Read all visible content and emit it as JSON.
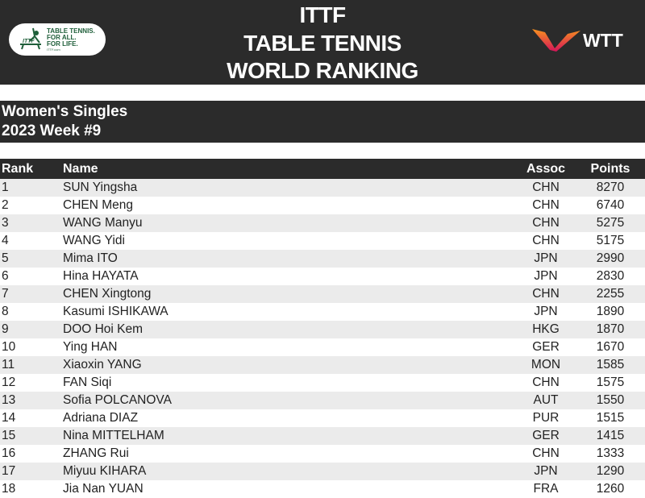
{
  "header": {
    "title_lines": [
      "ITTF",
      "TABLE TENNIS",
      "WORLD RANKING"
    ],
    "ittf_logo": {
      "lines": [
        "TABLE TENNIS.",
        "FOR ALL.",
        "FOR LIFE."
      ],
      "small": "ITTF.com"
    },
    "wtt_logo": {
      "text": "WTT"
    }
  },
  "subtitle": {
    "category": "Women's Singles",
    "week": "2023 Week #9"
  },
  "table": {
    "columns": [
      "Rank",
      "Name",
      "Assoc",
      "Points"
    ],
    "rows": [
      {
        "rank": "1",
        "name": "SUN Yingsha",
        "assoc": "CHN",
        "points": "8270"
      },
      {
        "rank": "2",
        "name": "CHEN Meng",
        "assoc": "CHN",
        "points": "6740"
      },
      {
        "rank": "3",
        "name": "WANG Manyu",
        "assoc": "CHN",
        "points": "5275"
      },
      {
        "rank": "4",
        "name": "WANG Yidi",
        "assoc": "CHN",
        "points": "5175"
      },
      {
        "rank": "5",
        "name": "Mima ITO",
        "assoc": "JPN",
        "points": "2990"
      },
      {
        "rank": "6",
        "name": "Hina HAYATA",
        "assoc": "JPN",
        "points": "2830"
      },
      {
        "rank": "7",
        "name": "CHEN Xingtong",
        "assoc": "CHN",
        "points": "2255"
      },
      {
        "rank": "8",
        "name": "Kasumi ISHIKAWA",
        "assoc": "JPN",
        "points": "1890"
      },
      {
        "rank": "9",
        "name": "DOO Hoi Kem",
        "assoc": "HKG",
        "points": "1870"
      },
      {
        "rank": "10",
        "name": "Ying HAN",
        "assoc": "GER",
        "points": "1670"
      },
      {
        "rank": "11",
        "name": "Xiaoxin YANG",
        "assoc": "MON",
        "points": "1585"
      },
      {
        "rank": "12",
        "name": "FAN Siqi",
        "assoc": "CHN",
        "points": "1575"
      },
      {
        "rank": "13",
        "name": "Sofia POLCANOVA",
        "assoc": "AUT",
        "points": "1550"
      },
      {
        "rank": "14",
        "name": "Adriana DIAZ",
        "assoc": "PUR",
        "points": "1515"
      },
      {
        "rank": "15",
        "name": "Nina MITTELHAM",
        "assoc": "GER",
        "points": "1415"
      },
      {
        "rank": "16",
        "name": "ZHANG Rui",
        "assoc": "CHN",
        "points": "1333"
      },
      {
        "rank": "17",
        "name": "Miyuu KIHARA",
        "assoc": "JPN",
        "points": "1290"
      },
      {
        "rank": "18",
        "name": "Jia Nan YUAN",
        "assoc": "FRA",
        "points": "1260"
      }
    ]
  },
  "colors": {
    "dark_band": "#2b2b2b",
    "row_stripe": "#ebebeb",
    "ittf_green": "#1f5f3a",
    "wtt_orange": "#f26a21",
    "wtt_red": "#d4145a"
  }
}
